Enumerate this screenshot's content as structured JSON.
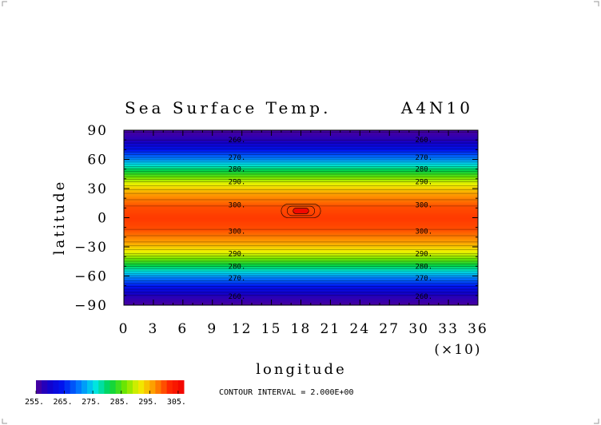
{
  "chart_data": {
    "type": "heatmap",
    "title": "Sea Surface Temp.",
    "experiment_label": "A4N10",
    "xlabel": "longitude",
    "ylabel": "latitude",
    "x_multiplier_label": "(×10)",
    "xlim": [
      0,
      36
    ],
    "ylim": [
      -90,
      90
    ],
    "x_ticks": [
      "0",
      "3",
      "6",
      "9",
      "12",
      "15",
      "18",
      "21",
      "24",
      "27",
      "30",
      "33",
      "36"
    ],
    "y_ticks": [
      "90",
      "60",
      "30",
      "0",
      "−30",
      "−60",
      "−90"
    ],
    "grid": false,
    "field": {
      "description_units": "K",
      "zonal_profile": [
        {
          "lat": -88,
          "value": 256
        },
        {
          "lat": -80,
          "value": 258
        },
        {
          "lat": -72,
          "value": 263
        },
        {
          "lat": -62,
          "value": 270
        },
        {
          "lat": -50,
          "value": 280
        },
        {
          "lat": -37,
          "value": 290
        },
        {
          "lat": -25,
          "value": 296
        },
        {
          "lat": -12,
          "value": 300
        },
        {
          "lat": 0,
          "value": 301
        },
        {
          "lat": 12,
          "value": 300
        },
        {
          "lat": 25,
          "value": 296
        },
        {
          "lat": 37,
          "value": 290
        },
        {
          "lat": 50,
          "value": 280
        },
        {
          "lat": 62,
          "value": 270
        },
        {
          "lat": 72,
          "value": 263
        },
        {
          "lat": 80,
          "value": 258
        },
        {
          "lat": 88,
          "value": 256
        }
      ],
      "warm_anomaly": {
        "lon_range": [
          16,
          20
        ],
        "lat_range": [
          0,
          14
        ],
        "peak_value": 306
      }
    },
    "contour_labels": [
      {
        "text": "260.",
        "lon": 11.5,
        "lat": 80
      },
      {
        "text": "270.",
        "lon": 11.5,
        "lat": 62
      },
      {
        "text": "280.",
        "lon": 11.5,
        "lat": 50
      },
      {
        "text": "290.",
        "lon": 11.5,
        "lat": 37
      },
      {
        "text": "300.",
        "lon": 11.5,
        "lat": 13
      },
      {
        "text": "300.",
        "lon": 11.5,
        "lat": -14
      },
      {
        "text": "290.",
        "lon": 11.5,
        "lat": -37
      },
      {
        "text": "280.",
        "lon": 11.5,
        "lat": -50
      },
      {
        "text": "270.",
        "lon": 11.5,
        "lat": -62
      },
      {
        "text": "260.",
        "lon": 11.5,
        "lat": -81
      },
      {
        "text": "260.",
        "lon": 30.5,
        "lat": 80
      },
      {
        "text": "270.",
        "lon": 30.5,
        "lat": 62
      },
      {
        "text": "280.",
        "lon": 30.5,
        "lat": 50
      },
      {
        "text": "290.",
        "lon": 30.5,
        "lat": 37
      },
      {
        "text": "300.",
        "lon": 30.5,
        "lat": 13
      },
      {
        "text": "300.",
        "lon": 30.5,
        "lat": -14
      },
      {
        "text": "290.",
        "lon": 30.5,
        "lat": -37
      },
      {
        "text": "280.",
        "lon": 30.5,
        "lat": -50
      },
      {
        "text": "270.",
        "lon": 30.5,
        "lat": -62
      },
      {
        "text": "260.",
        "lon": 30.5,
        "lat": -81
      }
    ],
    "colorbar": {
      "range": [
        255,
        307
      ],
      "tick_values": [
        255,
        265,
        275,
        285,
        295,
        305
      ],
      "tick_labels": [
        "255.",
        "265.",
        "275.",
        "285.",
        "295.",
        "305."
      ]
    },
    "contour_interval_text": "CONTOUR INTERVAL = 2.000E+00"
  }
}
